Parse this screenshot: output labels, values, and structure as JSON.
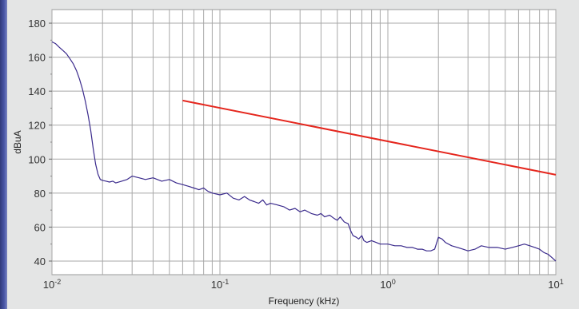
{
  "chart_data": {
    "type": "line",
    "title": "",
    "xlabel": "Frequency (kHz)",
    "ylabel": "dBuA",
    "xscale": "log",
    "xlim": [
      0.01,
      10
    ],
    "ylim": [
      32,
      188
    ],
    "grid": true,
    "x_ticks": [
      {
        "value": 0.01,
        "base": "10",
        "exp": "-2"
      },
      {
        "value": 0.1,
        "base": "10",
        "exp": "-1"
      },
      {
        "value": 1,
        "base": "10",
        "exp": "0"
      },
      {
        "value": 10,
        "base": "10",
        "exp": "1"
      }
    ],
    "y_ticks": [
      40,
      60,
      80,
      100,
      120,
      140,
      160,
      180
    ],
    "series": [
      {
        "color": "#3a2a8c",
        "x": [
          0.01,
          0.0105,
          0.011,
          0.0116,
          0.0122,
          0.0128,
          0.0134,
          0.014,
          0.0146,
          0.0152,
          0.0158,
          0.0164,
          0.017,
          0.0176,
          0.0182,
          0.0188,
          0.0194,
          0.02,
          0.021,
          0.022,
          0.023,
          0.024,
          0.026,
          0.028,
          0.03,
          0.033,
          0.036,
          0.04,
          0.045,
          0.05,
          0.055,
          0.06,
          0.065,
          0.07,
          0.075,
          0.08,
          0.085,
          0.09,
          0.1,
          0.11,
          0.12,
          0.13,
          0.14,
          0.15,
          0.16,
          0.17,
          0.18,
          0.19,
          0.2,
          0.22,
          0.24,
          0.26,
          0.28,
          0.3,
          0.32,
          0.35,
          0.38,
          0.4,
          0.42,
          0.45,
          0.48,
          0.5,
          0.52,
          0.55,
          0.58,
          0.6,
          0.62,
          0.65,
          0.67,
          0.7,
          0.72,
          0.75,
          0.8,
          0.85,
          0.9,
          1.0,
          1.1,
          1.2,
          1.3,
          1.4,
          1.5,
          1.6,
          1.7,
          1.8,
          1.9,
          2.0,
          2.1,
          2.2,
          2.4,
          2.6,
          2.8,
          3.0,
          3.3,
          3.6,
          4.0,
          4.5,
          5.0,
          5.5,
          6.0,
          6.5,
          7.0,
          7.5,
          8.0,
          8.5,
          9.0,
          9.5,
          10.0
        ],
        "y": [
          169,
          168,
          166,
          164,
          162,
          159,
          156,
          152,
          147,
          141,
          134,
          126,
          117,
          106,
          97,
          91,
          88,
          87.5,
          87,
          86.5,
          87,
          86,
          87,
          88,
          90,
          89,
          88,
          89,
          87,
          88,
          86,
          85,
          84,
          83,
          82,
          83,
          81,
          80,
          79,
          80,
          77,
          76,
          78,
          76,
          75,
          74,
          76,
          73,
          74,
          73,
          72,
          70,
          71,
          69,
          70,
          68,
          67,
          68,
          66,
          67,
          65,
          64,
          66,
          63,
          62,
          58,
          55,
          54,
          53,
          55,
          52,
          51,
          52,
          51,
          50,
          50,
          49,
          49,
          48,
          48,
          47,
          47,
          46,
          46,
          47,
          54,
          53,
          51,
          49,
          48,
          47,
          46,
          47,
          49,
          48,
          48,
          47,
          48,
          49,
          50,
          49,
          48,
          47,
          45,
          44,
          42,
          40
        ]
      },
      {
        "color": "#e5271e",
        "x": [
          0.06,
          10
        ],
        "y": [
          134.5,
          90.8
        ]
      }
    ]
  }
}
